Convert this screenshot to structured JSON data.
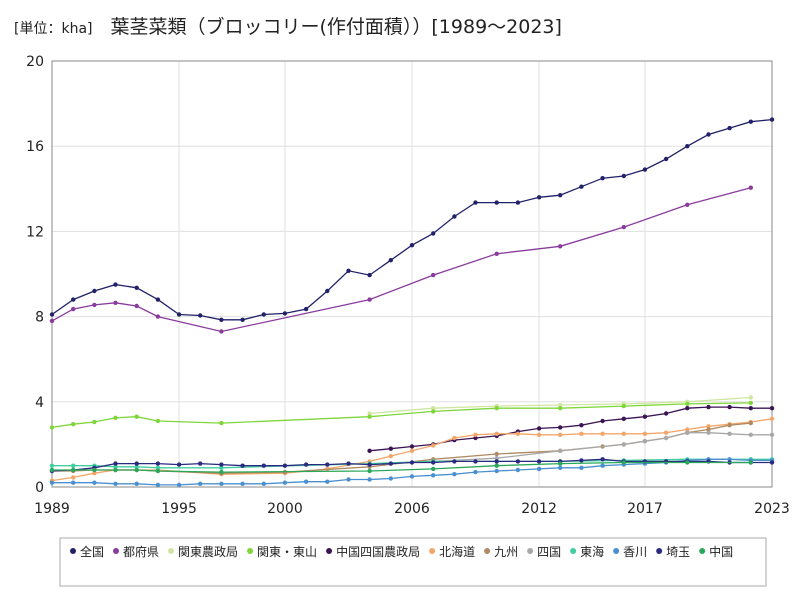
{
  "chart_data": {
    "type": "line",
    "unit_label": "[単位：kha]",
    "title": "葉茎菜類（ブロッコリー(作付面積））[1989～2023]",
    "xlabel": "",
    "ylabel": "",
    "xlim": [
      1989,
      2023
    ],
    "ylim": [
      0,
      20
    ],
    "x_ticks": [
      1989,
      1995,
      2000,
      2006,
      2012,
      2017,
      2023
    ],
    "y_ticks": [
      0,
      4,
      8,
      12,
      16,
      20
    ],
    "grid": true,
    "legend_position": "bottom",
    "series": [
      {
        "name": "全国",
        "color": "#22226b",
        "points": [
          [
            1989,
            8.1
          ],
          [
            1990,
            8.8
          ],
          [
            1991,
            9.2
          ],
          [
            1992,
            9.5
          ],
          [
            1993,
            9.35
          ],
          [
            1994,
            8.8
          ],
          [
            1995,
            8.1
          ],
          [
            1996,
            8.05
          ],
          [
            1997,
            7.85
          ],
          [
            1998,
            7.85
          ],
          [
            1999,
            8.1
          ],
          [
            2000,
            8.15
          ],
          [
            2001,
            8.35
          ],
          [
            2002,
            9.2
          ],
          [
            2003,
            10.15
          ],
          [
            2004,
            9.95
          ],
          [
            2005,
            10.65
          ],
          [
            2006,
            11.35
          ],
          [
            2007,
            11.9
          ],
          [
            2008,
            12.7
          ],
          [
            2009,
            13.35
          ],
          [
            2010,
            13.35
          ],
          [
            2011,
            13.35
          ],
          [
            2012,
            13.6
          ],
          [
            2013,
            13.7
          ],
          [
            2014,
            14.1
          ],
          [
            2015,
            14.5
          ],
          [
            2016,
            14.6
          ],
          [
            2017,
            14.9
          ],
          [
            2018,
            15.4
          ],
          [
            2019,
            16.0
          ],
          [
            2020,
            16.55
          ],
          [
            2021,
            16.85
          ],
          [
            2022,
            17.15
          ],
          [
            2023,
            17.25
          ]
        ]
      },
      {
        "name": "都府県",
        "color": "#8a3b9e",
        "points": [
          [
            1989,
            7.8
          ],
          [
            1990,
            8.35
          ],
          [
            1991,
            8.55
          ],
          [
            1992,
            8.65
          ],
          [
            1993,
            8.5
          ],
          [
            1994,
            8.0
          ],
          [
            1997,
            7.3
          ],
          [
            2004,
            8.8
          ],
          [
            2007,
            9.95
          ],
          [
            2010,
            10.95
          ],
          [
            2013,
            11.3
          ],
          [
            2016,
            12.2
          ],
          [
            2019,
            13.25
          ],
          [
            2022,
            14.05
          ]
        ]
      },
      {
        "name": "関東農政局",
        "color": "#cfe6a0",
        "points": [
          [
            2004,
            3.45
          ],
          [
            2007,
            3.7
          ],
          [
            2010,
            3.8
          ],
          [
            2013,
            3.85
          ],
          [
            2016,
            3.9
          ],
          [
            2019,
            4.0
          ],
          [
            2022,
            4.2
          ]
        ]
      },
      {
        "name": "関東・東山",
        "color": "#7ed63a",
        "points": [
          [
            1989,
            2.8
          ],
          [
            1990,
            2.95
          ],
          [
            1991,
            3.05
          ],
          [
            1992,
            3.25
          ],
          [
            1993,
            3.3
          ],
          [
            1994,
            3.1
          ],
          [
            1997,
            3.0
          ],
          [
            2004,
            3.3
          ],
          [
            2007,
            3.55
          ],
          [
            2010,
            3.7
          ],
          [
            2013,
            3.7
          ],
          [
            2016,
            3.8
          ],
          [
            2019,
            3.9
          ],
          [
            2022,
            3.95
          ]
        ]
      },
      {
        "name": "中国四国農政局",
        "color": "#3b1454",
        "points": [
          [
            2004,
            1.7
          ],
          [
            2005,
            1.8
          ],
          [
            2006,
            1.9
          ],
          [
            2007,
            2.0
          ],
          [
            2008,
            2.2
          ],
          [
            2009,
            2.3
          ],
          [
            2010,
            2.4
          ],
          [
            2011,
            2.6
          ],
          [
            2012,
            2.75
          ],
          [
            2013,
            2.8
          ],
          [
            2014,
            2.9
          ],
          [
            2015,
            3.1
          ],
          [
            2016,
            3.2
          ],
          [
            2017,
            3.3
          ],
          [
            2018,
            3.45
          ],
          [
            2019,
            3.7
          ],
          [
            2020,
            3.75
          ],
          [
            2021,
            3.75
          ],
          [
            2022,
            3.7
          ],
          [
            2023,
            3.7
          ]
        ]
      },
      {
        "name": "北海道",
        "color": "#f4a66a",
        "points": [
          [
            1989,
            0.3
          ],
          [
            1990,
            0.45
          ],
          [
            1991,
            0.65
          ],
          [
            1992,
            0.8
          ],
          [
            1993,
            0.8
          ],
          [
            1994,
            0.8
          ],
          [
            1997,
            0.6
          ],
          [
            2000,
            0.65
          ],
          [
            2002,
            0.85
          ],
          [
            2004,
            1.2
          ],
          [
            2005,
            1.45
          ],
          [
            2006,
            1.7
          ],
          [
            2007,
            1.95
          ],
          [
            2008,
            2.3
          ],
          [
            2009,
            2.45
          ],
          [
            2010,
            2.5
          ],
          [
            2011,
            2.5
          ],
          [
            2012,
            2.45
          ],
          [
            2013,
            2.45
          ],
          [
            2014,
            2.5
          ],
          [
            2015,
            2.5
          ],
          [
            2016,
            2.5
          ],
          [
            2017,
            2.5
          ],
          [
            2018,
            2.55
          ],
          [
            2019,
            2.7
          ],
          [
            2020,
            2.85
          ],
          [
            2021,
            2.95
          ],
          [
            2022,
            3.05
          ],
          [
            2023,
            3.2
          ]
        ]
      },
      {
        "name": "九州",
        "color": "#b08a62",
        "points": [
          [
            1989,
            0.75
          ],
          [
            1990,
            0.75
          ],
          [
            1991,
            0.8
          ],
          [
            1992,
            0.8
          ],
          [
            1993,
            0.8
          ],
          [
            1994,
            0.75
          ],
          [
            1997,
            0.65
          ],
          [
            2000,
            0.7
          ],
          [
            2004,
            0.95
          ],
          [
            2007,
            1.3
          ],
          [
            2010,
            1.55
          ],
          [
            2013,
            1.7
          ],
          [
            2015,
            1.9
          ],
          [
            2016,
            2.0
          ],
          [
            2017,
            2.15
          ],
          [
            2018,
            2.3
          ],
          [
            2019,
            2.55
          ],
          [
            2020,
            2.7
          ],
          [
            2021,
            2.9
          ],
          [
            2022,
            3.0
          ]
        ]
      },
      {
        "name": "四国",
        "color": "#a8a8a8",
        "points": [
          [
            2004,
            1.05
          ],
          [
            2007,
            1.2
          ],
          [
            2010,
            1.35
          ],
          [
            2013,
            1.7
          ],
          [
            2016,
            2.0
          ],
          [
            2017,
            2.15
          ],
          [
            2018,
            2.3
          ],
          [
            2019,
            2.55
          ],
          [
            2020,
            2.55
          ],
          [
            2021,
            2.5
          ],
          [
            2022,
            2.45
          ],
          [
            2023,
            2.45
          ]
        ]
      },
      {
        "name": "東海",
        "color": "#40d0a0",
        "points": [
          [
            1989,
            1.0
          ],
          [
            1990,
            1.0
          ],
          [
            1991,
            1.0
          ],
          [
            1992,
            0.95
          ],
          [
            1993,
            0.95
          ],
          [
            1994,
            0.9
          ],
          [
            1997,
            0.9
          ],
          [
            2004,
            1.1
          ],
          [
            2007,
            1.2
          ],
          [
            2010,
            1.2
          ],
          [
            2013,
            1.2
          ],
          [
            2016,
            1.25
          ],
          [
            2019,
            1.3
          ],
          [
            2022,
            1.3
          ],
          [
            2023,
            1.3
          ]
        ]
      },
      {
        "name": "香川",
        "color": "#4a90d0",
        "points": [
          [
            1989,
            0.2
          ],
          [
            1990,
            0.2
          ],
          [
            1991,
            0.2
          ],
          [
            1992,
            0.15
          ],
          [
            1993,
            0.15
          ],
          [
            1994,
            0.1
          ],
          [
            1995,
            0.1
          ],
          [
            1996,
            0.15
          ],
          [
            1997,
            0.15
          ],
          [
            1998,
            0.15
          ],
          [
            1999,
            0.15
          ],
          [
            2000,
            0.2
          ],
          [
            2001,
            0.25
          ],
          [
            2002,
            0.25
          ],
          [
            2003,
            0.35
          ],
          [
            2004,
            0.35
          ],
          [
            2005,
            0.4
          ],
          [
            2006,
            0.5
          ],
          [
            2007,
            0.55
          ],
          [
            2008,
            0.6
          ],
          [
            2009,
            0.7
          ],
          [
            2010,
            0.75
          ],
          [
            2011,
            0.8
          ],
          [
            2012,
            0.85
          ],
          [
            2013,
            0.9
          ],
          [
            2014,
            0.9
          ],
          [
            2015,
            1.0
          ],
          [
            2016,
            1.05
          ],
          [
            2017,
            1.1
          ],
          [
            2018,
            1.15
          ],
          [
            2019,
            1.25
          ],
          [
            2020,
            1.3
          ],
          [
            2021,
            1.3
          ],
          [
            2022,
            1.25
          ],
          [
            2023,
            1.25
          ]
        ]
      },
      {
        "name": "埼玉",
        "color": "#2a2a80",
        "points": [
          [
            1989,
            0.75
          ],
          [
            1990,
            0.8
          ],
          [
            1991,
            0.9
          ],
          [
            1992,
            1.1
          ],
          [
            1993,
            1.1
          ],
          [
            1994,
            1.1
          ],
          [
            1995,
            1.05
          ],
          [
            1996,
            1.1
          ],
          [
            1997,
            1.05
          ],
          [
            1998,
            1.0
          ],
          [
            1999,
            1.0
          ],
          [
            2000,
            1.0
          ],
          [
            2001,
            1.05
          ],
          [
            2002,
            1.05
          ],
          [
            2003,
            1.1
          ],
          [
            2004,
            1.05
          ],
          [
            2005,
            1.1
          ],
          [
            2006,
            1.15
          ],
          [
            2007,
            1.15
          ],
          [
            2008,
            1.2
          ],
          [
            2009,
            1.2
          ],
          [
            2010,
            1.2
          ],
          [
            2011,
            1.2
          ],
          [
            2012,
            1.2
          ],
          [
            2013,
            1.2
          ],
          [
            2014,
            1.25
          ],
          [
            2015,
            1.3
          ],
          [
            2016,
            1.2
          ],
          [
            2017,
            1.2
          ],
          [
            2018,
            1.2
          ],
          [
            2019,
            1.2
          ],
          [
            2020,
            1.2
          ],
          [
            2021,
            1.15
          ],
          [
            2022,
            1.15
          ],
          [
            2023,
            1.15
          ]
        ]
      },
      {
        "name": "中国",
        "color": "#2aa85a",
        "points": [
          [
            1989,
            0.8
          ],
          [
            1990,
            0.8
          ],
          [
            1991,
            0.8
          ],
          [
            1992,
            0.8
          ],
          [
            1993,
            0.8
          ],
          [
            1994,
            0.75
          ],
          [
            1997,
            0.7
          ],
          [
            2004,
            0.75
          ],
          [
            2007,
            0.85
          ],
          [
            2010,
            1.0
          ],
          [
            2013,
            1.1
          ],
          [
            2016,
            1.15
          ],
          [
            2019,
            1.15
          ],
          [
            2022,
            1.15
          ]
        ]
      }
    ]
  }
}
